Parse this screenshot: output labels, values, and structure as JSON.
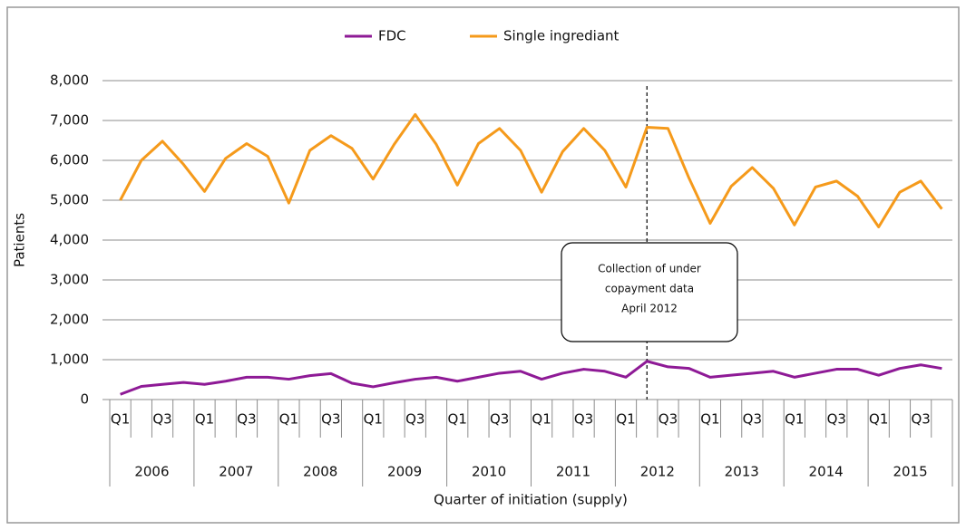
{
  "chart_data": {
    "type": "line",
    "x_label": "Quarter of initiation (supply)",
    "y_label": "Patients",
    "categories": [
      "Q1",
      null,
      "Q3",
      null,
      "Q1",
      null,
      "Q3",
      null,
      "Q1",
      null,
      "Q3",
      null,
      "Q1",
      null,
      "Q3",
      null,
      "Q1",
      null,
      "Q3",
      null,
      "Q1",
      null,
      "Q3",
      null,
      "Q1",
      null,
      "Q3",
      null,
      "Q1",
      null,
      "Q3",
      null,
      "Q1",
      null,
      "Q3",
      null,
      "Q1",
      null,
      "Q3",
      null
    ],
    "years": [
      "2006",
      "2007",
      "2008",
      "2009",
      "2010",
      "2011",
      "2012",
      "2013",
      "2014",
      "2015"
    ],
    "series": [
      {
        "name": "FDC",
        "color": "#8e1a96",
        "values": [
          130,
          330,
          380,
          430,
          380,
          460,
          560,
          560,
          510,
          600,
          650,
          410,
          320,
          420,
          510,
          560,
          460,
          560,
          660,
          710,
          510,
          660,
          760,
          710,
          560,
          960,
          820,
          780,
          560,
          610,
          660,
          710,
          560,
          660,
          760,
          760,
          610,
          780,
          870,
          780
        ]
      },
      {
        "name": "Single ingrediant",
        "color": "#f59a1b",
        "values": [
          5000,
          6000,
          6480,
          5900,
          5220,
          6050,
          6420,
          6100,
          4930,
          6250,
          6620,
          6300,
          5530,
          6400,
          7150,
          6400,
          5380,
          6420,
          6800,
          6250,
          5200,
          6220,
          6800,
          6250,
          5330,
          6830,
          6800,
          5550,
          4420,
          5350,
          5820,
          5300,
          4380,
          5330,
          5480,
          5100,
          4330,
          5200,
          5480,
          4780
        ]
      }
    ],
    "ylim": [
      0,
      8000
    ],
    "yticks": [
      0,
      {
        "value": 1000,
        "label": "1,000"
      },
      {
        "value": 2000,
        "label": "2,000"
      },
      {
        "value": 3000,
        "label": "3,000"
      },
      {
        "value": 4000,
        "label": "4,000"
      },
      {
        "value": 5000,
        "label": "5,000"
      },
      {
        "value": 6000,
        "label": "6,000"
      },
      {
        "value": 7000,
        "label": "7,000"
      },
      {
        "value": 8000,
        "label": "8,000"
      }
    ],
    "grid": true,
    "legend": "top",
    "annotation": {
      "text": [
        "Collection of under",
        "copayment data",
        "April 2012"
      ],
      "category_index": 25
    }
  }
}
